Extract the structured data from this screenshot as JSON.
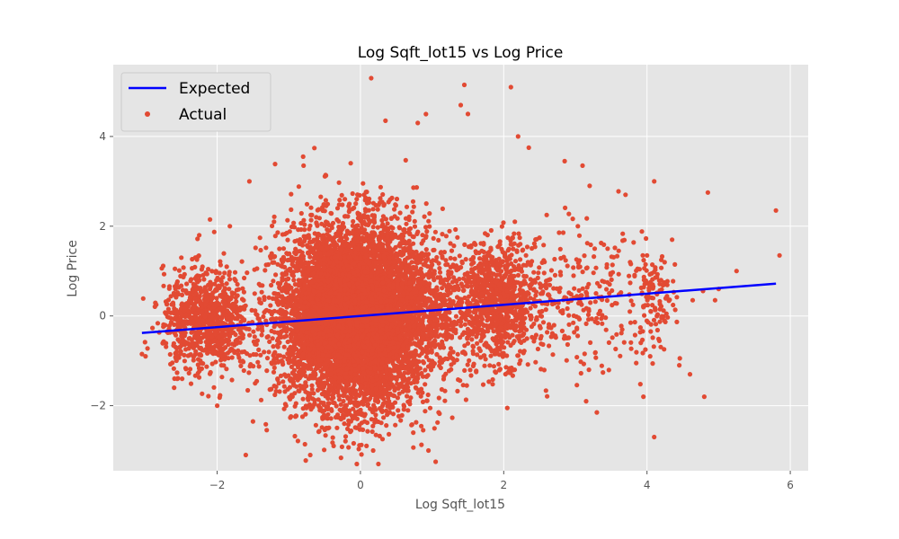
{
  "chart_data": {
    "type": "scatter",
    "title": "Log Sqft_lot15 vs Log Price",
    "xlabel": "Log Sqft_lot15",
    "ylabel": "Log Price",
    "xlim": [
      -3.45,
      6.25
    ],
    "ylim": [
      -3.45,
      5.6
    ],
    "xticks": [
      -2,
      0,
      2,
      4,
      6
    ],
    "xtick_labels": [
      "−2",
      "0",
      "2",
      "4",
      "6"
    ],
    "yticks": [
      -2,
      0,
      2,
      4
    ],
    "ytick_labels": [
      "−2",
      "0",
      "2",
      "4"
    ],
    "grid": true,
    "legend_position": "top-left",
    "colors": {
      "background": "#e5e5e5",
      "grid": "#ffffff",
      "actual": "#e24a33",
      "expected": "#0000ff"
    },
    "series": [
      {
        "name": "Expected",
        "kind": "line",
        "x": [
          -3.05,
          5.8
        ],
        "y": [
          -0.38,
          0.72
        ]
      },
      {
        "name": "Actual",
        "kind": "scatter",
        "points": [
          [
            0.15,
            5.3
          ],
          [
            1.45,
            5.15
          ],
          [
            2.1,
            5.1
          ],
          [
            0.35,
            4.35
          ],
          [
            1.4,
            4.7
          ],
          [
            1.5,
            4.5
          ],
          [
            0.8,
            4.3
          ],
          [
            2.2,
            4.0
          ],
          [
            2.35,
            3.75
          ],
          [
            2.85,
            3.45
          ],
          [
            3.1,
            3.35
          ],
          [
            -0.8,
            3.55
          ],
          [
            -1.55,
            3.0
          ],
          [
            3.2,
            2.9
          ],
          [
            4.1,
            3.0
          ],
          [
            4.85,
            2.75
          ],
          [
            5.8,
            2.35
          ],
          [
            5.85,
            1.35
          ],
          [
            5.25,
            1.0
          ],
          [
            -2.1,
            2.15
          ],
          [
            -2.25,
            1.8
          ],
          [
            -2.85,
            0.25
          ],
          [
            -3.05,
            -0.85
          ],
          [
            -3.0,
            -0.9
          ],
          [
            4.1,
            -2.7
          ],
          [
            4.8,
            -1.8
          ],
          [
            3.95,
            -1.8
          ],
          [
            3.3,
            -2.15
          ],
          [
            3.15,
            -1.9
          ],
          [
            -1.6,
            -3.1
          ],
          [
            -0.7,
            -3.1
          ],
          [
            1.05,
            -3.25
          ],
          [
            0.95,
            -3.0
          ],
          [
            0.25,
            -3.3
          ],
          [
            -0.05,
            -3.3
          ],
          [
            2.05,
            -2.05
          ],
          [
            4.6,
            -1.3
          ],
          [
            4.45,
            -1.1
          ],
          [
            3.85,
            -1.05
          ],
          [
            -2.0,
            -2.0
          ],
          [
            -1.5,
            -2.35
          ],
          [
            3.7,
            2.7
          ],
          [
            4.0,
            1.35
          ],
          [
            4.35,
            1.7
          ],
          [
            3.45,
            1.5
          ],
          [
            2.6,
            2.25
          ],
          [
            5.0,
            0.6
          ],
          [
            4.95,
            0.35
          ],
          [
            -2.5,
            1.3
          ],
          [
            -2.6,
            -1.6
          ]
        ],
        "clusters": [
          {
            "cx": -0.3,
            "cy": 0.0,
            "sx": 0.45,
            "sy": 0.95,
            "n": 4200
          },
          {
            "cx": 0.15,
            "cy": 0.0,
            "sx": 0.4,
            "sy": 1.05,
            "n": 3200
          },
          {
            "cx": -2.15,
            "cy": -0.1,
            "sx": 0.3,
            "sy": 0.55,
            "n": 900
          },
          {
            "cx": 1.95,
            "cy": 0.3,
            "sx": 0.25,
            "sy": 0.65,
            "n": 800
          },
          {
            "cx": 1.0,
            "cy": 0.2,
            "sx": 0.45,
            "sy": 0.8,
            "n": 700
          },
          {
            "cx": 3.0,
            "cy": 0.3,
            "sx": 0.5,
            "sy": 0.75,
            "n": 280
          },
          {
            "cx": 4.1,
            "cy": 0.3,
            "sx": 0.15,
            "sy": 0.6,
            "n": 120
          }
        ]
      }
    ]
  }
}
